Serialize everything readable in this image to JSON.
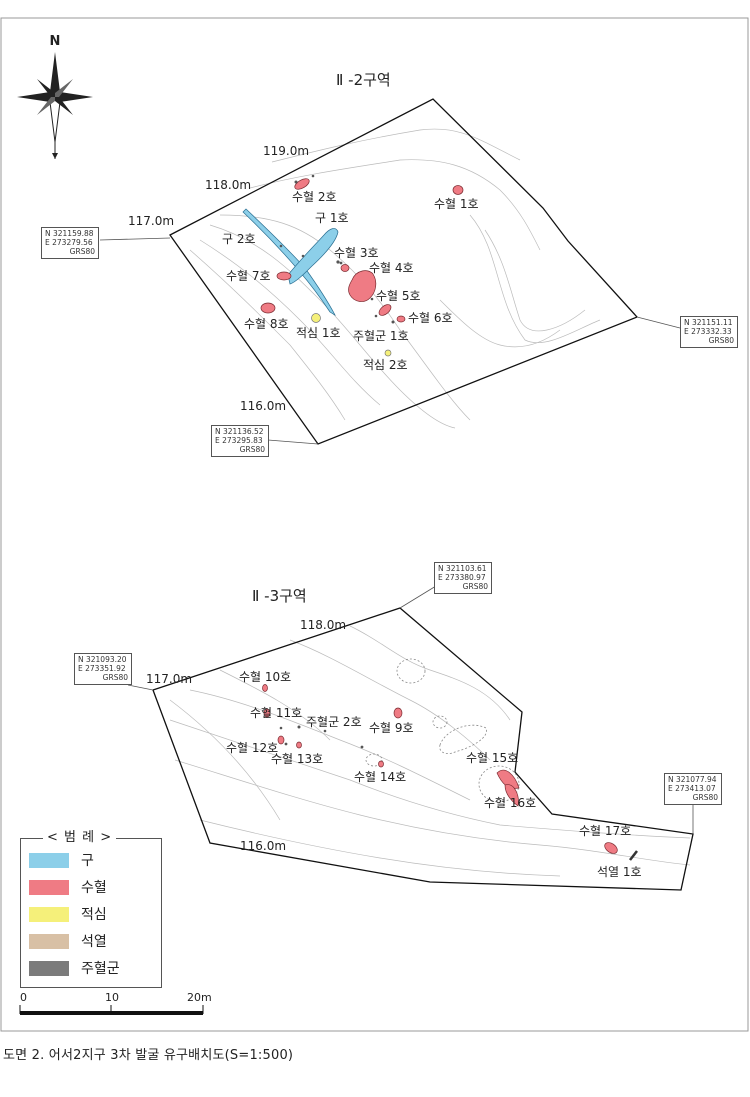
{
  "compass": {
    "north_label": "N"
  },
  "zone_top": {
    "title": "Ⅱ -2구역",
    "contours": [
      "119.0m",
      "118.0m",
      "117.0m",
      "116.0m"
    ],
    "features": {
      "pit_1": "수혈 1호",
      "pit_2": "수혈 2호",
      "pit_3": "수혈 3호",
      "pit_4": "수혈 4호",
      "pit_5": "수혈 5호",
      "pit_6": "수혈 6호",
      "pit_7": "수혈 7호",
      "pit_8": "수혈 8호",
      "ditch_1": "구 1호",
      "ditch_2": "구 2호",
      "stone_1": "적심 1호",
      "stone_2": "적심 2호",
      "posthole_group_1": "주혈군 1호"
    },
    "coords": {
      "west": {
        "n": "N 321159.88",
        "e": "E 273279.56",
        "datum": "GRS80"
      },
      "east": {
        "n": "N 321151.11",
        "e": "E 273332.33",
        "datum": "GRS80"
      },
      "south": {
        "n": "N 321136.52",
        "e": "E 273295.83",
        "datum": "GRS80"
      }
    }
  },
  "zone_bottom": {
    "title": "Ⅱ -3구역",
    "contours": [
      "118.0m",
      "117.0m",
      "116.0m"
    ],
    "features": {
      "pit_9": "수혈 9호",
      "pit_10": "수혈 10호",
      "pit_11": "수혈 11호",
      "pit_12": "수혈 12호",
      "pit_13": "수혈 13호",
      "pit_14": "수혈 14호",
      "pit_15": "수혈 15호",
      "pit_16": "수혈 16호",
      "pit_17": "수혈 17호",
      "posthole_group_2": "주혈군 2호",
      "stone_row_1": "석열 1호"
    },
    "coords": {
      "north": {
        "n": "N 321103.61",
        "e": "E 273380.97",
        "datum": "GRS80"
      },
      "west": {
        "n": "N 321093.20",
        "e": "E 273351.92",
        "datum": "GRS80"
      },
      "east": {
        "n": "N 321077.94",
        "e": "E 273413.07",
        "datum": "GRS80"
      }
    }
  },
  "legend": {
    "title": "< 범 례 >",
    "items": [
      {
        "label": "구",
        "color": "#8ccfe9"
      },
      {
        "label": "수혈",
        "color": "#ef7b84"
      },
      {
        "label": "적심",
        "color": "#f5f07a"
      },
      {
        "label": "석열",
        "color": "#d8c0a5"
      },
      {
        "label": "주혈군",
        "color": "#7b7b7b"
      }
    ]
  },
  "scale": {
    "ticks": [
      "0",
      "10",
      "20m"
    ]
  },
  "caption": "도면 2. 어서2지구 3차 발굴 유구배치도(S=1:500)"
}
